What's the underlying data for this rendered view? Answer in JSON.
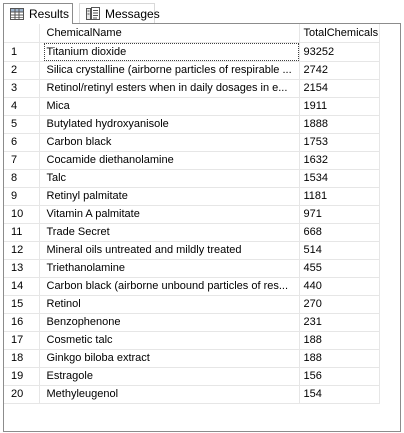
{
  "tabs": {
    "results_label": "Results",
    "messages_label": "Messages",
    "results_icon": "grid-icon",
    "messages_icon": "messages-icon"
  },
  "grid": {
    "columns": [
      "ChemicalName",
      "TotalChemicals"
    ],
    "rows": [
      {
        "num": "1",
        "name": "Titanium dioxide",
        "total": "93252"
      },
      {
        "num": "2",
        "name": "Silica crystalline (airborne particles of respirable ...",
        "total": "2742"
      },
      {
        "num": "3",
        "name": "Retinol/retinyl esters when in daily dosages in e...",
        "total": "2154"
      },
      {
        "num": "4",
        "name": "Mica",
        "total": "1911"
      },
      {
        "num": "5",
        "name": "Butylated hydroxyanisole",
        "total": "1888"
      },
      {
        "num": "6",
        "name": "Carbon black",
        "total": "1753"
      },
      {
        "num": "7",
        "name": "Cocamide diethanolamine",
        "total": "1632"
      },
      {
        "num": "8",
        "name": "Talc",
        "total": "1534"
      },
      {
        "num": "9",
        "name": "Retinyl palmitate",
        "total": "1181"
      },
      {
        "num": "10",
        "name": "Vitamin A palmitate",
        "total": "971"
      },
      {
        "num": "11",
        "name": "Trade Secret",
        "total": "668"
      },
      {
        "num": "12",
        "name": "Mineral oils untreated and mildly treated",
        "total": "514"
      },
      {
        "num": "13",
        "name": "Triethanolamine",
        "total": "455"
      },
      {
        "num": "14",
        "name": "Carbon black (airborne unbound particles of res...",
        "total": "440"
      },
      {
        "num": "15",
        "name": "Retinol",
        "total": "270"
      },
      {
        "num": "16",
        "name": "Benzophenone",
        "total": "231"
      },
      {
        "num": "17",
        "name": "Cosmetic talc",
        "total": "188"
      },
      {
        "num": "18",
        "name": "Ginkgo biloba extract",
        "total": "188"
      },
      {
        "num": "19",
        "name": "Estragole",
        "total": "156"
      },
      {
        "num": "20",
        "name": "Methyleugenol",
        "total": "154"
      }
    ],
    "selected_row": 0
  }
}
